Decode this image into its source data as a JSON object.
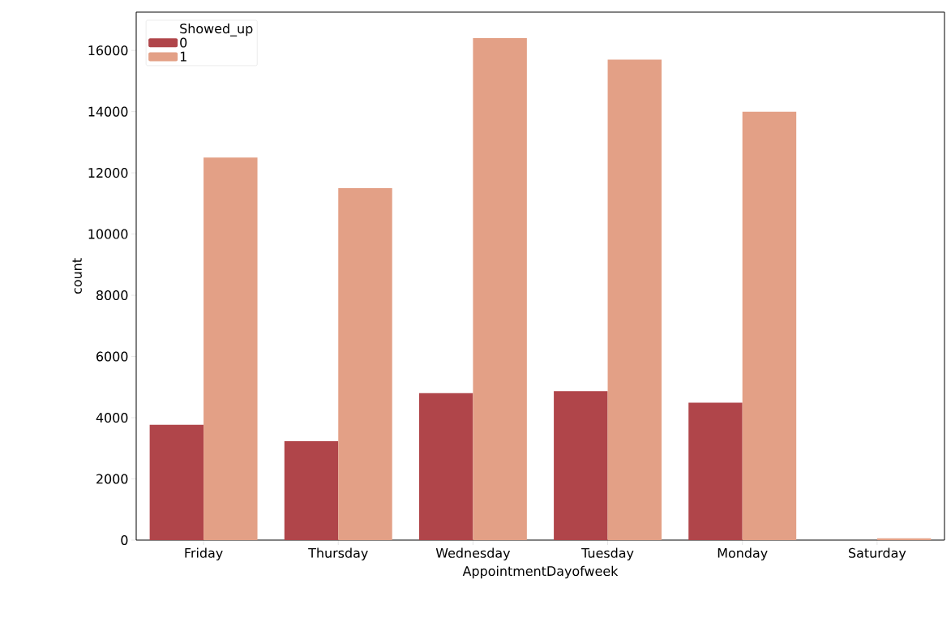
{
  "chart_data": {
    "type": "bar",
    "xlabel": "AppointmentDayofweek",
    "ylabel": "count",
    "legend_title": "Showed_up",
    "categories": [
      "Friday",
      "Thursday",
      "Wednesday",
      "Tuesday",
      "Monday",
      "Saturday"
    ],
    "series": [
      {
        "name": "0",
        "color": "#b0454a",
        "values": [
          3770,
          3230,
          4800,
          4870,
          4490,
          0
        ]
      },
      {
        "name": "1",
        "color": "#e3a086",
        "values": [
          12500,
          11500,
          16400,
          15700,
          14000,
          60
        ]
      }
    ],
    "ylim": [
      0,
      17250
    ],
    "yticks": [
      0,
      2000,
      4000,
      6000,
      8000,
      10000,
      12000,
      14000,
      16000
    ],
    "legend": "top left",
    "grid": false
  }
}
